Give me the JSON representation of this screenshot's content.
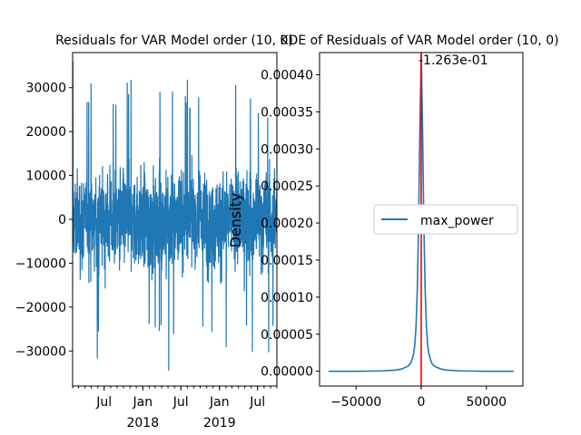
{
  "chart_data": [
    {
      "type": "line",
      "title": "Residuals for VAR Model order (10, 0)",
      "xlabel": "",
      "ylabel": "",
      "x_ticks_major": [
        "Jul",
        "Jan",
        "Jul",
        "Jan",
        "Jul"
      ],
      "x_ticks_year": [
        "2018",
        "2019"
      ],
      "x_range": [
        "2017-02-01",
        "2019-10-01"
      ],
      "ylim": [
        -38000,
        38000
      ],
      "y_ticks": [
        -30000,
        -20000,
        -10000,
        0,
        10000,
        20000,
        30000
      ],
      "y_tick_labels": [
        "−30000",
        "−20000",
        "−10000",
        "0",
        "10000",
        "20000",
        "30000"
      ],
      "grid": false,
      "series": [
        {
          "name": "",
          "color": "#1f77b4",
          "approx_spread_sd": 9000,
          "approx_max": 36000,
          "approx_min": -34500
        }
      ]
    },
    {
      "type": "line",
      "title": "KDE of Residuals of VAR Model order (10, 0)",
      "xlabel": "",
      "ylabel": "Density",
      "xlim": [
        -78000,
        78000
      ],
      "ylim": [
        -2e-05,
        0.00043
      ],
      "x_ticks": [
        -50000,
        0,
        50000
      ],
      "x_tick_labels": [
        "−50000",
        "0",
        "50000"
      ],
      "y_ticks": [
        0,
        5e-05,
        0.0001,
        0.00015,
        0.0002,
        0.00025,
        0.0003,
        0.00035,
        0.0004
      ],
      "y_tick_labels": [
        "0.00000",
        "0.00005",
        "0.00010",
        "0.00015",
        "0.00020",
        "0.00025",
        "0.00030",
        "0.00035",
        "0.00040"
      ],
      "legend": "center-right",
      "grid": false,
      "series": [
        {
          "name": "max_power",
          "color": "#1f77b4",
          "x": [
            -71000,
            -50000,
            -30000,
            -20000,
            -15000,
            -10000,
            -8000,
            -6000,
            -5000,
            -4000,
            -3000,
            -2000,
            -1000,
            0,
            1000,
            2000,
            3000,
            4000,
            5000,
            6000,
            8000,
            10000,
            15000,
            20000,
            30000,
            50000,
            71000
          ],
          "y": [
            0,
            0,
            5e-07,
            1.5e-06,
            3e-06,
            7e-06,
            1.1e-05,
            2.2e-05,
            3.4e-05,
            6e-05,
            0.00011,
            0.0002,
            0.00033,
            0.00043,
            0.00033,
            0.0002,
            0.00011,
            6e-05,
            3.4e-05,
            2.2e-05,
            1.1e-05,
            7e-06,
            3e-06,
            1.5e-06,
            5e-07,
            0,
            0
          ]
        }
      ],
      "vline": {
        "x": -0.1263,
        "color": "#ff0000",
        "label": "-1.263e-01"
      }
    }
  ]
}
